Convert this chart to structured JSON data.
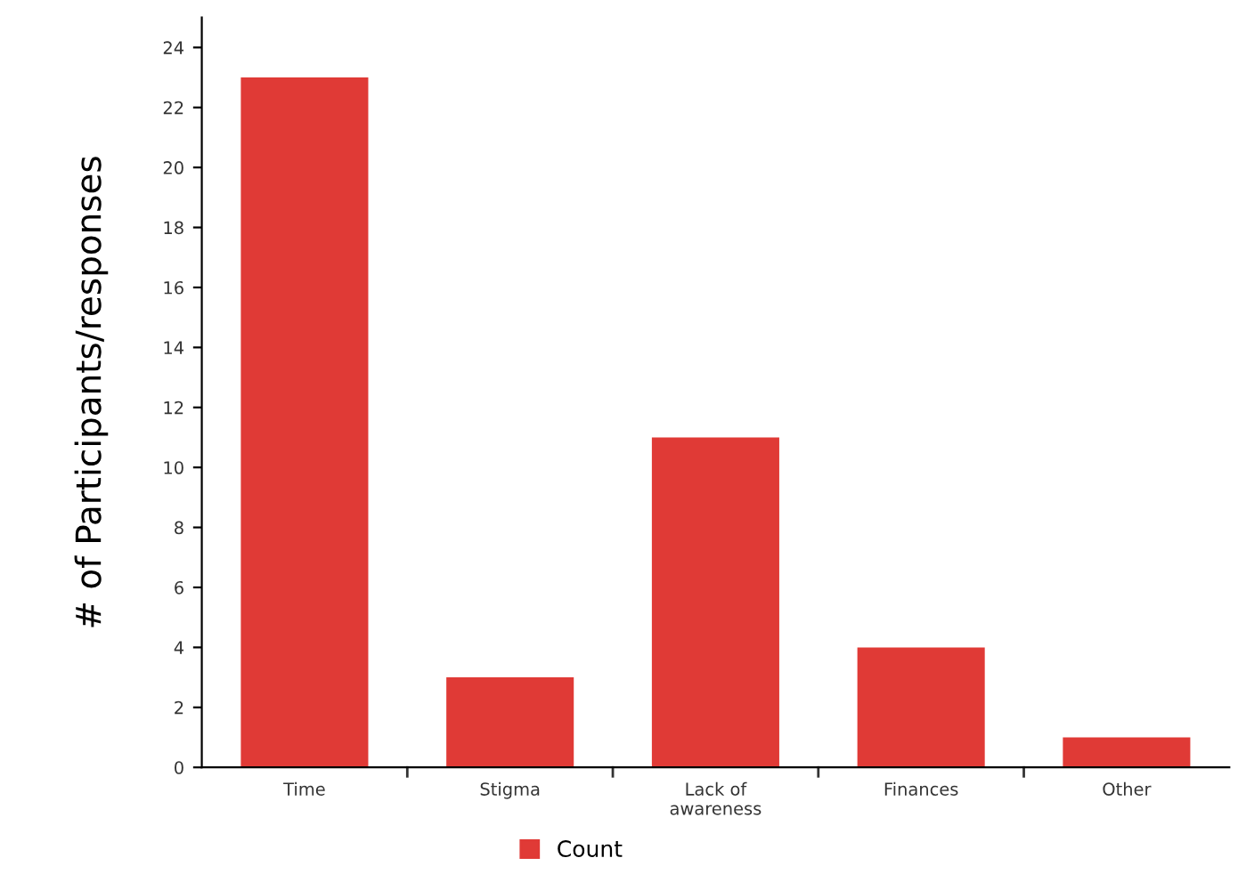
{
  "chart_data": {
    "type": "bar",
    "ylabel": "# of Participants/responses",
    "categories": [
      "Time",
      "Stigma",
      "Lack of\nawareness",
      "Finances",
      "Other"
    ],
    "series": [
      {
        "name": "Count",
        "color": "#e03a36",
        "values": [
          23,
          3,
          11,
          4,
          1
        ]
      }
    ],
    "ylim": [
      0,
      25
    ],
    "yticks": [
      0,
      2,
      4,
      6,
      8,
      10,
      12,
      14,
      16,
      18,
      20,
      22,
      24
    ],
    "grid": false,
    "legend": "bottom"
  }
}
